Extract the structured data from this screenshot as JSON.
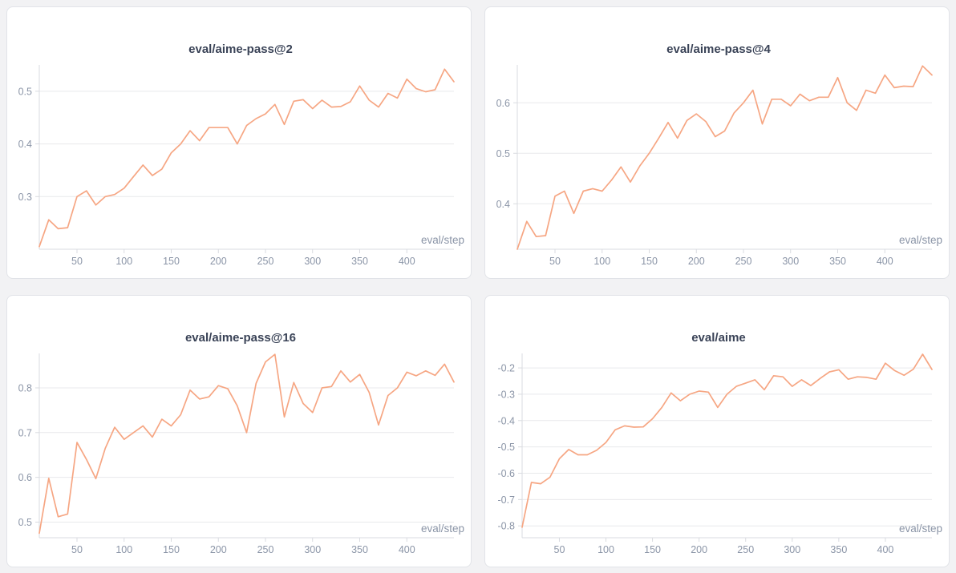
{
  "colors": {
    "series_line": "#f6a683",
    "grid_line": "#e8e9ec",
    "axis_line": "#d9dbe0",
    "title_text": "#3a4357",
    "tick_text": "#8b95a7",
    "card_background": "#ffffff",
    "page_background": "#f2f2f4"
  },
  "shared": {
    "xlabel": "eval/step",
    "xlim": [
      10,
      450
    ],
    "xticks": [
      50,
      100,
      150,
      200,
      250,
      300,
      350,
      400
    ],
    "steps": [
      10,
      20,
      30,
      40,
      50,
      60,
      70,
      80,
      90,
      100,
      110,
      120,
      130,
      140,
      150,
      160,
      170,
      180,
      190,
      200,
      210,
      220,
      230,
      240,
      250,
      260,
      270,
      280,
      290,
      300,
      310,
      320,
      330,
      340,
      350,
      360,
      370,
      380,
      390,
      400,
      410,
      420,
      430,
      440,
      450
    ],
    "grid": true,
    "legend": "none"
  },
  "chart_data": [
    {
      "type": "line",
      "title": "eval/aime-pass@2",
      "xlabel": "eval/step",
      "ylim": [
        0.2,
        0.55
      ],
      "yticks": [
        "0.3",
        "0.4",
        "0.5"
      ],
      "x": [
        10,
        20,
        30,
        40,
        50,
        60,
        70,
        80,
        90,
        100,
        110,
        120,
        130,
        140,
        150,
        160,
        170,
        180,
        190,
        200,
        210,
        220,
        230,
        240,
        250,
        260,
        270,
        280,
        290,
        300,
        310,
        320,
        330,
        340,
        350,
        360,
        370,
        380,
        390,
        400,
        410,
        420,
        430,
        440,
        450
      ],
      "values": [
        0.205,
        0.256,
        0.239,
        0.241,
        0.3,
        0.311,
        0.284,
        0.3,
        0.304,
        0.316,
        0.338,
        0.36,
        0.34,
        0.352,
        0.383,
        0.4,
        0.425,
        0.406,
        0.431,
        0.431,
        0.431,
        0.4,
        0.435,
        0.448,
        0.457,
        0.475,
        0.437,
        0.481,
        0.484,
        0.467,
        0.483,
        0.47,
        0.471,
        0.48,
        0.51,
        0.483,
        0.47,
        0.496,
        0.487,
        0.523,
        0.505,
        0.499,
        0.503,
        0.542,
        0.518
      ]
    },
    {
      "type": "line",
      "title": "eval/aime-pass@4",
      "xlabel": "eval/step",
      "ylim": [
        0.31,
        0.675
      ],
      "yticks": [
        "0.4",
        "0.5",
        "0.6"
      ],
      "x": [
        10,
        20,
        30,
        40,
        50,
        60,
        70,
        80,
        90,
        100,
        110,
        120,
        130,
        140,
        150,
        160,
        170,
        180,
        190,
        200,
        210,
        220,
        230,
        240,
        250,
        260,
        270,
        280,
        290,
        300,
        310,
        320,
        330,
        340,
        350,
        360,
        370,
        380,
        390,
        400,
        410,
        420,
        430,
        440,
        450
      ],
      "values": [
        0.31,
        0.365,
        0.335,
        0.337,
        0.415,
        0.425,
        0.381,
        0.425,
        0.43,
        0.425,
        0.447,
        0.473,
        0.443,
        0.475,
        0.5,
        0.53,
        0.561,
        0.53,
        0.565,
        0.578,
        0.563,
        0.533,
        0.544,
        0.58,
        0.6,
        0.625,
        0.558,
        0.607,
        0.607,
        0.594,
        0.617,
        0.604,
        0.611,
        0.611,
        0.65,
        0.6,
        0.585,
        0.625,
        0.619,
        0.655,
        0.63,
        0.633,
        0.632,
        0.673,
        0.655
      ]
    },
    {
      "type": "line",
      "title": "eval/aime-pass@16",
      "xlabel": "eval/step",
      "ylim": [
        0.465,
        0.877
      ],
      "yticks": [
        "0.5",
        "0.6",
        "0.7",
        "0.8"
      ],
      "x": [
        10,
        20,
        30,
        40,
        50,
        60,
        70,
        80,
        90,
        100,
        110,
        120,
        130,
        140,
        150,
        160,
        170,
        180,
        190,
        200,
        210,
        220,
        230,
        240,
        250,
        260,
        270,
        280,
        290,
        300,
        310,
        320,
        330,
        340,
        350,
        360,
        370,
        380,
        390,
        400,
        410,
        420,
        430,
        440,
        450
      ],
      "values": [
        0.475,
        0.598,
        0.512,
        0.518,
        0.678,
        0.64,
        0.597,
        0.665,
        0.712,
        0.685,
        0.7,
        0.715,
        0.69,
        0.73,
        0.715,
        0.74,
        0.795,
        0.775,
        0.78,
        0.805,
        0.798,
        0.76,
        0.7,
        0.81,
        0.858,
        0.875,
        0.735,
        0.812,
        0.765,
        0.745,
        0.8,
        0.803,
        0.838,
        0.813,
        0.83,
        0.79,
        0.717,
        0.783,
        0.8,
        0.835,
        0.827,
        0.838,
        0.828,
        0.853,
        0.813
      ]
    },
    {
      "type": "line",
      "title": "eval/aime",
      "xlabel": "eval/step",
      "ylim": [
        -0.845,
        -0.145
      ],
      "yticks": [
        "-0.8",
        "-0.7",
        "-0.6",
        "-0.5",
        "-0.4",
        "-0.3",
        "-0.2"
      ],
      "x": [
        10,
        20,
        30,
        40,
        50,
        60,
        70,
        80,
        90,
        100,
        110,
        120,
        130,
        140,
        150,
        160,
        170,
        180,
        190,
        200,
        210,
        220,
        230,
        240,
        250,
        260,
        270,
        280,
        290,
        300,
        310,
        320,
        330,
        340,
        350,
        360,
        370,
        380,
        390,
        400,
        410,
        420,
        430,
        440,
        450
      ],
      "values": [
        -0.805,
        -0.635,
        -0.64,
        -0.615,
        -0.545,
        -0.51,
        -0.53,
        -0.53,
        -0.513,
        -0.483,
        -0.435,
        -0.42,
        -0.425,
        -0.424,
        -0.393,
        -0.35,
        -0.295,
        -0.325,
        -0.3,
        -0.288,
        -0.292,
        -0.35,
        -0.3,
        -0.27,
        -0.258,
        -0.245,
        -0.283,
        -0.23,
        -0.234,
        -0.27,
        -0.245,
        -0.267,
        -0.24,
        -0.215,
        -0.207,
        -0.243,
        -0.234,
        -0.236,
        -0.243,
        -0.182,
        -0.21,
        -0.228,
        -0.205,
        -0.148,
        -0.206
      ]
    }
  ]
}
